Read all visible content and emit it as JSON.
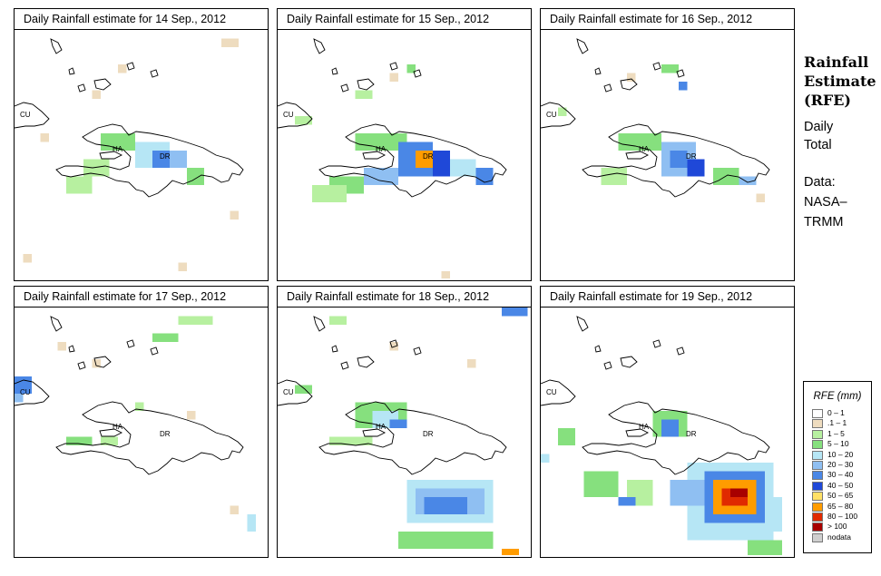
{
  "panels": [
    {
      "title": "Daily Rainfall estimate for  14 Sep., 2012"
    },
    {
      "title": "Daily Rainfall estimate for  15 Sep., 2012"
    },
    {
      "title": "Daily Rainfall estimate for  16 Sep., 2012"
    },
    {
      "title": "Daily Rainfall estimate for  17 Sep., 2012"
    },
    {
      "title": "Daily Rainfall estimate for  18 Sep., 2012"
    },
    {
      "title": "Daily Rainfall estimate for  19 Sep., 2012"
    }
  ],
  "map_labels": {
    "cuba": "CU",
    "haiti": "HA",
    "dominican_republic": "DR"
  },
  "side": {
    "heading_line1": "Rainfall",
    "heading_line2": "Estimate",
    "heading_line3": "(RFE)",
    "daily_line1": "Daily",
    "daily_line2": "Total",
    "data_line1": "Data:",
    "data_line2": "NASA–",
    "data_line3": "TRMM"
  },
  "legend": {
    "title": "RFE (mm)",
    "classes": [
      {
        "label": "0 – 1",
        "color": "#ffffff"
      },
      {
        "label": ".1 – 1",
        "color": "#eedcbf"
      },
      {
        "label": "1 – 5",
        "color": "#b7f0a0"
      },
      {
        "label": "5 – 10",
        "color": "#86e07e"
      },
      {
        "label": "10 – 20",
        "color": "#b6e6f5"
      },
      {
        "label": "20 – 30",
        "color": "#8fbff2"
      },
      {
        "label": "30 – 40",
        "color": "#4a87e6"
      },
      {
        "label": "40 – 50",
        "color": "#1f48d8"
      },
      {
        "label": "50 – 65",
        "color": "#ffe066"
      },
      {
        "label": "65 – 80",
        "color": "#ff9c00"
      },
      {
        "label": "80 – 100",
        "color": "#e02a00"
      },
      {
        "label": "> 100",
        "color": "#a80000"
      },
      {
        "label": "nodata",
        "color": "#cfcfcf"
      }
    ]
  }
}
